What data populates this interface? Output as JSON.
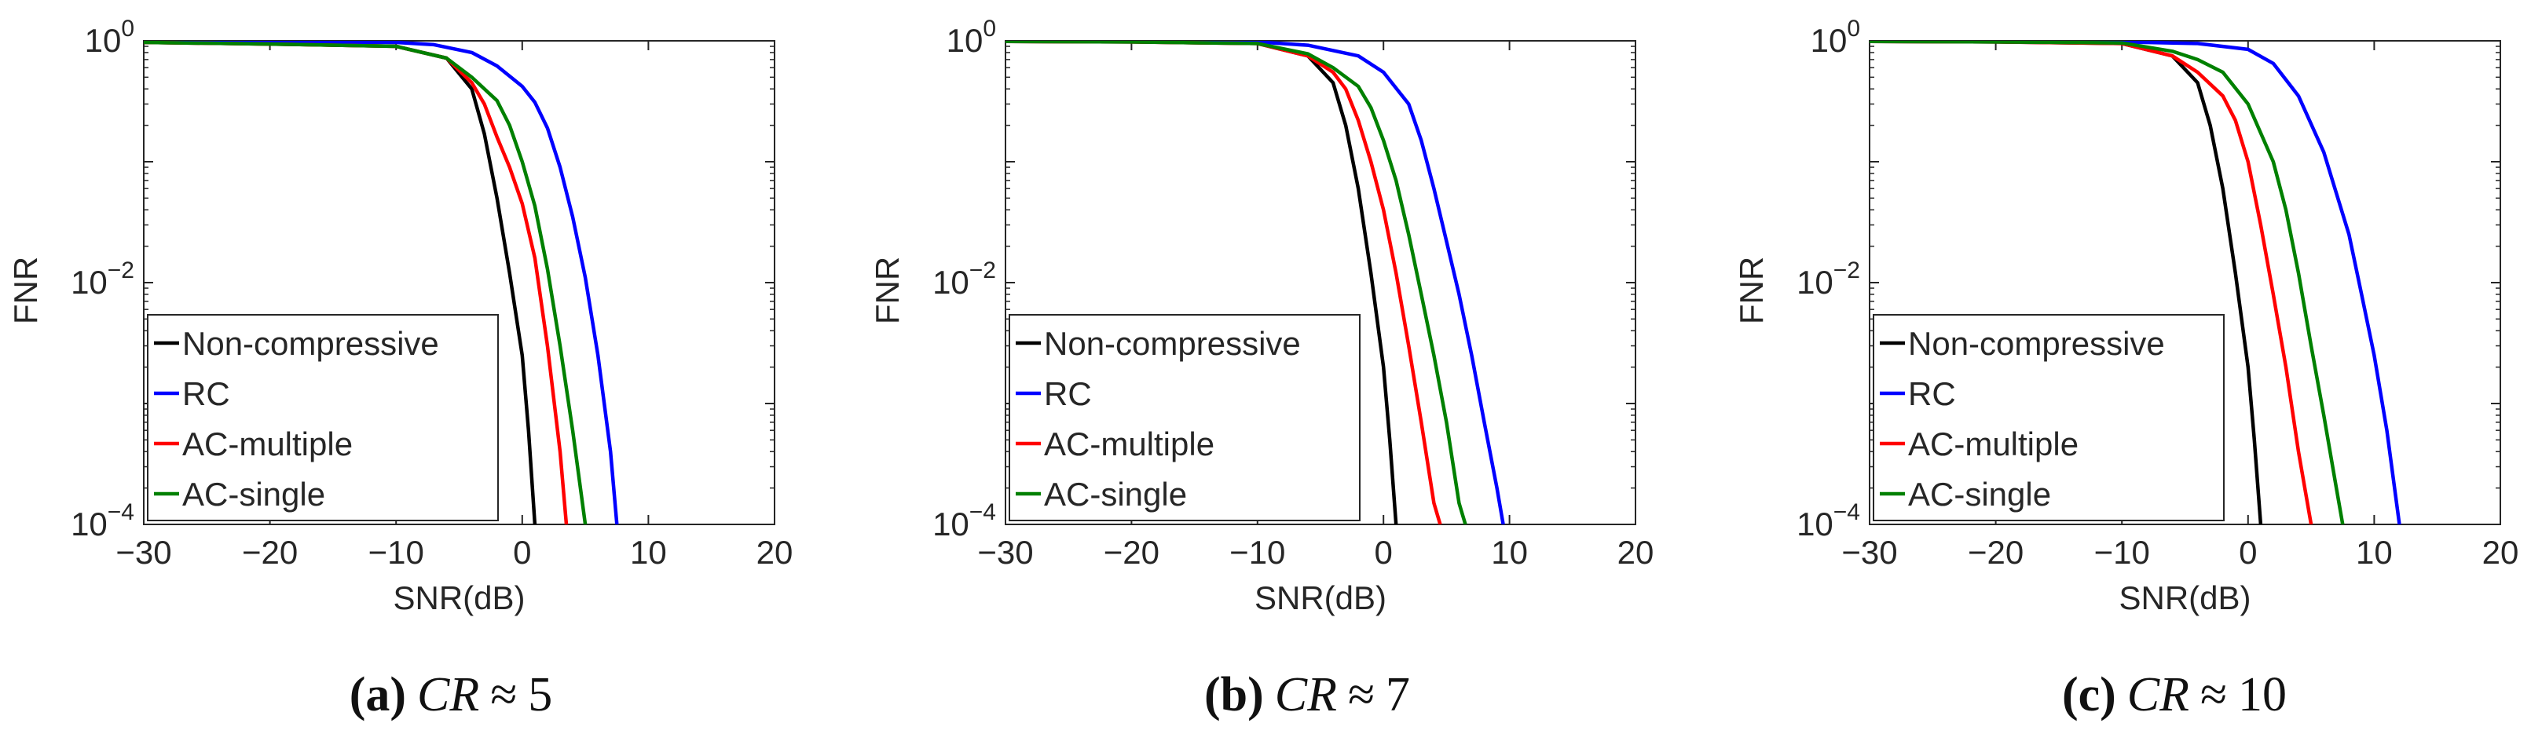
{
  "figure": {
    "panels": [
      {
        "letter": "(a)",
        "cr_symbol": "CR",
        "approx": "≈",
        "cr_value": "5"
      },
      {
        "letter": "(b)",
        "cr_symbol": "CR",
        "approx": "≈",
        "cr_value": "7"
      },
      {
        "letter": "(c)",
        "cr_symbol": "CR",
        "approx": "≈",
        "cr_value": "10"
      }
    ]
  },
  "chart_data": [
    {
      "type": "line",
      "title": "",
      "xlabel": "SNR(dB)",
      "ylabel": "FNR",
      "yscale": "log",
      "xlim": [
        -30,
        20
      ],
      "ylim": [
        0.0001,
        1
      ],
      "xticks": [
        "−30",
        "−20",
        "−10",
        "0",
        "10",
        "20"
      ],
      "yticks": [
        {
          "base": "10",
          "exp": "0"
        },
        {
          "base": "10",
          "exp": "−2"
        },
        {
          "base": "10",
          "exp": "−4"
        }
      ],
      "grid": false,
      "legend_position": "bottom-left",
      "series": [
        {
          "name": "Non-compressive",
          "color": "#000000",
          "x": [
            -30,
            -20,
            -10,
            -6,
            -4,
            -3,
            -2,
            -1,
            0,
            0.5,
            1
          ],
          "y": [
            0.97,
            0.94,
            0.9,
            0.72,
            0.4,
            0.17,
            0.05,
            0.012,
            0.0025,
            0.0006,
            0.0001
          ]
        },
        {
          "name": "RC",
          "color": "#0000ff",
          "x": [
            -30,
            -20,
            -10,
            -7,
            -4,
            -2,
            0,
            1,
            2,
            3,
            4,
            5,
            6,
            7,
            7.5
          ],
          "y": [
            0.99,
            0.98,
            0.97,
            0.93,
            0.8,
            0.62,
            0.42,
            0.31,
            0.19,
            0.09,
            0.035,
            0.011,
            0.0025,
            0.0004,
            0.0001
          ]
        },
        {
          "name": "AC-multiple",
          "color": "#ff0000",
          "x": [
            -30,
            -20,
            -10,
            -6,
            -4,
            -3,
            -2,
            -1,
            0,
            1,
            2,
            3,
            3.5
          ],
          "y": [
            0.97,
            0.94,
            0.9,
            0.72,
            0.45,
            0.3,
            0.16,
            0.09,
            0.045,
            0.016,
            0.003,
            0.0004,
            0.0001
          ]
        },
        {
          "name": "AC-single",
          "color": "#008000",
          "x": [
            -30,
            -20,
            -10,
            -6,
            -4,
            -2,
            -1,
            0,
            1,
            2,
            3,
            4,
            5
          ],
          "y": [
            0.97,
            0.94,
            0.9,
            0.72,
            0.5,
            0.32,
            0.2,
            0.1,
            0.043,
            0.013,
            0.003,
            0.0006,
            0.0001
          ]
        }
      ]
    },
    {
      "type": "line",
      "title": "",
      "xlabel": "SNR(dB)",
      "ylabel": "FNR",
      "yscale": "log",
      "xlim": [
        -30,
        20
      ],
      "ylim": [
        0.0001,
        1
      ],
      "xticks": [
        "−30",
        "−20",
        "−10",
        "0",
        "10",
        "20"
      ],
      "yticks": [
        {
          "base": "10",
          "exp": "0"
        },
        {
          "base": "10",
          "exp": "−2"
        },
        {
          "base": "10",
          "exp": "−4"
        }
      ],
      "grid": false,
      "legend_position": "bottom-left",
      "series": [
        {
          "name": "Non-compressive",
          "color": "#000000",
          "x": [
            -30,
            -20,
            -10,
            -6,
            -4,
            -3,
            -2,
            -1,
            0,
            0.5,
            1
          ],
          "y": [
            0.99,
            0.98,
            0.95,
            0.75,
            0.45,
            0.2,
            0.06,
            0.012,
            0.002,
            0.0005,
            0.0001
          ]
        },
        {
          "name": "RC",
          "color": "#0000ff",
          "x": [
            -30,
            -20,
            -10,
            -6,
            -2,
            0,
            2,
            3,
            4,
            5,
            6,
            7,
            8,
            9,
            9.5
          ],
          "y": [
            0.99,
            0.99,
            0.98,
            0.92,
            0.75,
            0.55,
            0.3,
            0.15,
            0.06,
            0.022,
            0.008,
            0.0025,
            0.0007,
            0.0002,
            0.0001
          ]
        },
        {
          "name": "AC-multiple",
          "color": "#ff0000",
          "x": [
            -30,
            -20,
            -10,
            -6,
            -4,
            -3,
            -2,
            -1,
            0,
            1,
            2,
            3,
            4,
            4.5
          ],
          "y": [
            0.99,
            0.98,
            0.95,
            0.75,
            0.55,
            0.4,
            0.22,
            0.1,
            0.04,
            0.012,
            0.003,
            0.0007,
            0.00015,
            0.0001
          ]
        },
        {
          "name": "AC-single",
          "color": "#008000",
          "x": [
            -30,
            -20,
            -10,
            -6,
            -4,
            -2,
            -1,
            0,
            1,
            2,
            3,
            4,
            5,
            6,
            6.5
          ],
          "y": [
            0.99,
            0.98,
            0.95,
            0.78,
            0.6,
            0.42,
            0.28,
            0.15,
            0.07,
            0.025,
            0.008,
            0.0025,
            0.0007,
            0.00015,
            0.0001
          ]
        }
      ]
    },
    {
      "type": "line",
      "title": "",
      "xlabel": "SNR(dB)",
      "ylabel": "FNR",
      "yscale": "log",
      "xlim": [
        -30,
        20
      ],
      "ylim": [
        0.0001,
        1
      ],
      "xticks": [
        "−30",
        "−20",
        "−10",
        "0",
        "10",
        "20"
      ],
      "yticks": [
        {
          "base": "10",
          "exp": "0"
        },
        {
          "base": "10",
          "exp": "−2"
        },
        {
          "base": "10",
          "exp": "−4"
        }
      ],
      "grid": false,
      "legend_position": "bottom-left",
      "series": [
        {
          "name": "Non-compressive",
          "color": "#000000",
          "x": [
            -30,
            -20,
            -10,
            -6,
            -4,
            -3,
            -2,
            -1,
            0,
            0.5,
            1
          ],
          "y": [
            0.99,
            0.98,
            0.95,
            0.75,
            0.45,
            0.2,
            0.06,
            0.012,
            0.002,
            0.0005,
            0.0001
          ]
        },
        {
          "name": "RC",
          "color": "#0000ff",
          "x": [
            -30,
            -20,
            -10,
            -4,
            0,
            2,
            4,
            6,
            8,
            9,
            10,
            11,
            12
          ],
          "y": [
            0.99,
            0.99,
            0.98,
            0.95,
            0.85,
            0.65,
            0.35,
            0.12,
            0.025,
            0.008,
            0.0025,
            0.0006,
            0.0001
          ]
        },
        {
          "name": "AC-multiple",
          "color": "#ff0000",
          "x": [
            -30,
            -20,
            -10,
            -6,
            -4,
            -2,
            -1,
            0,
            1,
            2,
            3,
            4,
            5
          ],
          "y": [
            0.99,
            0.98,
            0.95,
            0.75,
            0.55,
            0.35,
            0.22,
            0.1,
            0.03,
            0.008,
            0.002,
            0.0004,
            0.0001
          ]
        },
        {
          "name": "AC-single",
          "color": "#008000",
          "x": [
            -30,
            -20,
            -10,
            -6,
            -4,
            -2,
            0,
            2,
            3,
            4,
            5,
            6,
            7,
            7.5
          ],
          "y": [
            0.99,
            0.98,
            0.96,
            0.82,
            0.7,
            0.55,
            0.3,
            0.1,
            0.04,
            0.012,
            0.003,
            0.0008,
            0.0002,
            0.0001
          ]
        }
      ]
    }
  ]
}
